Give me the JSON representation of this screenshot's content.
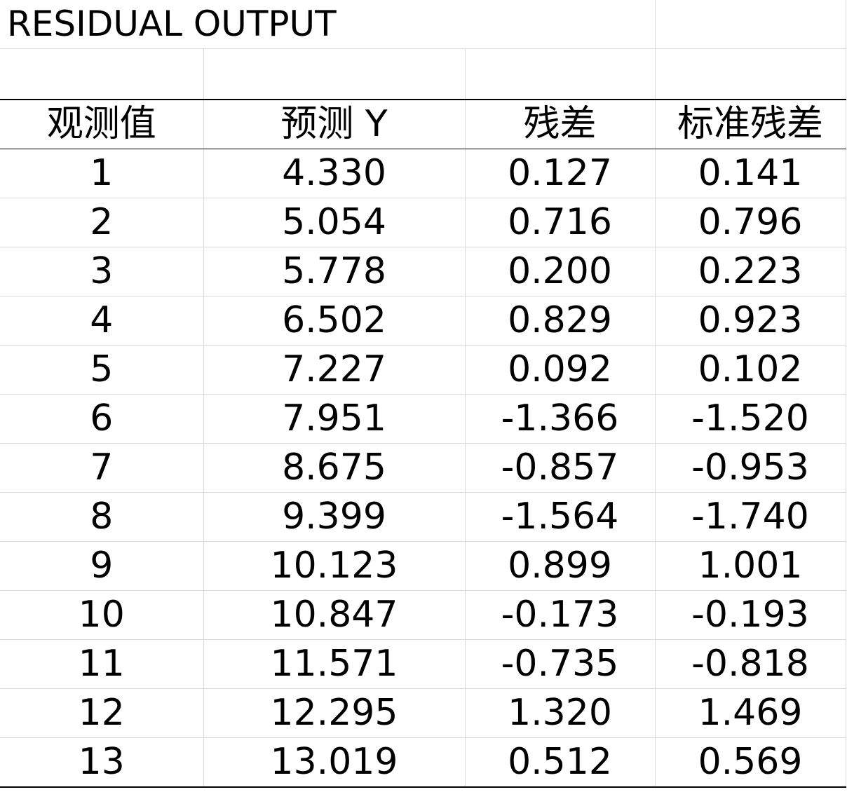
{
  "title": "RESIDUAL OUTPUT",
  "columns": [
    "观测值",
    "预测 Y",
    "残差",
    "标准残差"
  ],
  "rows": [
    [
      "1",
      "4.330",
      "0.127",
      "0.141"
    ],
    [
      "2",
      "5.054",
      "0.716",
      "0.796"
    ],
    [
      "3",
      "5.778",
      "0.200",
      "0.223"
    ],
    [
      "4",
      "6.502",
      "0.829",
      "0.923"
    ],
    [
      "5",
      "7.227",
      "0.092",
      "0.102"
    ],
    [
      "6",
      "7.951",
      "-1.366",
      "-1.520"
    ],
    [
      "7",
      "8.675",
      "-0.857",
      "-0.953"
    ],
    [
      "8",
      "9.399",
      "-1.564",
      "-1.740"
    ],
    [
      "9",
      "10.123",
      "0.899",
      "1.001"
    ],
    [
      "10",
      "10.847",
      "-0.173",
      "-0.193"
    ],
    [
      "11",
      "11.571",
      "-0.735",
      "-0.818"
    ],
    [
      "12",
      "12.295",
      "1.320",
      "1.469"
    ],
    [
      "13",
      "13.019",
      "0.512",
      "0.569"
    ]
  ]
}
